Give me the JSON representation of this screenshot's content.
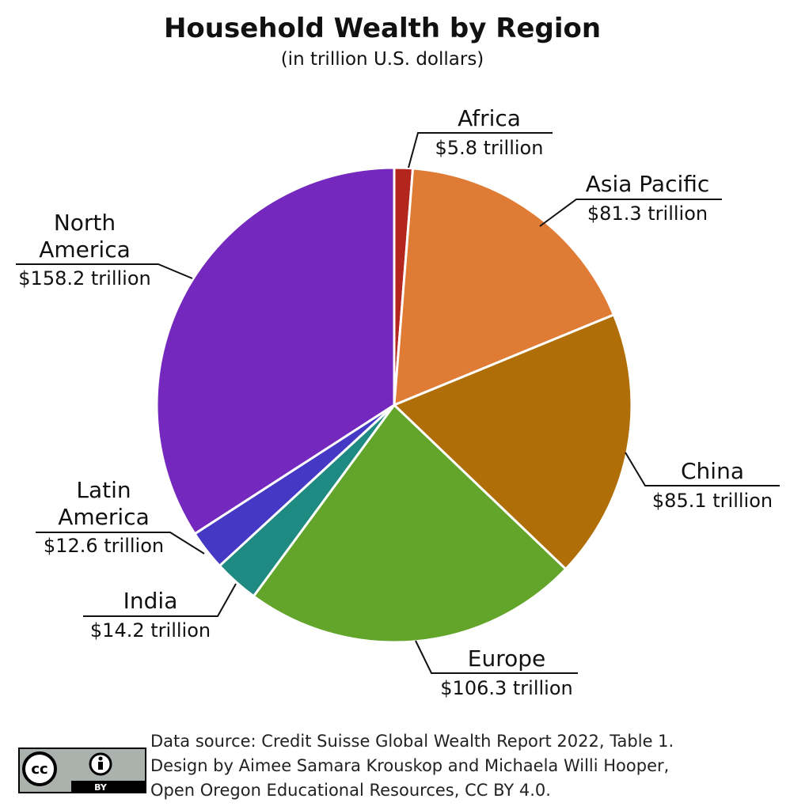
{
  "chart_data": {
    "type": "pie",
    "title": "Household Wealth by Region",
    "subtitle": "(in trillion U.S. dollars)",
    "categories": [
      "Africa",
      "Asia Pacific",
      "China",
      "Europe",
      "India",
      "Latin America",
      "North America"
    ],
    "values": [
      5.8,
      81.3,
      85.1,
      106.3,
      14.2,
      12.6,
      158.2
    ],
    "value_labels": [
      "$5.8 trillion",
      "$81.3 trillion",
      "$85.1 trillion",
      "$106.3 trillion",
      "$14.2 trillion",
      "$12.6 trillion",
      "$158.2 trillion"
    ],
    "colors": [
      "#b3261e",
      "#e07b35",
      "#b06e08",
      "#62a52a",
      "#1f8a82",
      "#4438c4",
      "#7428bd"
    ],
    "source": [
      "Data source: Credit Suisse Global Wealth Report 2022, Table 1.",
      "Design by Aimee Samara Krouskop and Michaela Willi Hooper,",
      "Open Oregon Educational Resources, CC BY 4.0."
    ],
    "license_badge": {
      "left": "cc",
      "right": "BY"
    }
  }
}
